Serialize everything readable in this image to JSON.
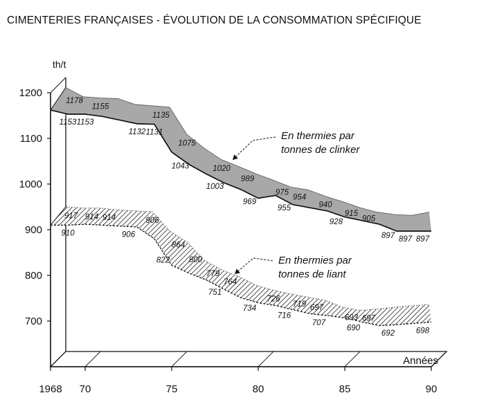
{
  "chart_data": {
    "type": "line",
    "title": "CIMENTERIES FRANÇAISES - ÉVOLUTION DE LA CONSOMMATION SPÉCIFIQUE",
    "ylabel": "th/t",
    "xlabel": "Années",
    "ylim": [
      600,
      1200
    ],
    "xlim": [
      1968,
      1990
    ],
    "y_ticks": [
      "700",
      "800",
      "900",
      "1000",
      "1100",
      "1200"
    ],
    "x_ticks": [
      "1968",
      "70",
      "75",
      "80",
      "85",
      "90"
    ],
    "x_tick_years": [
      1968,
      1970,
      1975,
      1980,
      1985,
      1990
    ],
    "grid": false,
    "style": "3d-ribbon",
    "series": [
      {
        "name": "En thermies par tonnes de clinker",
        "fill": "#a8a8a8",
        "front": [
          [
            1968,
            1162
          ],
          [
            1969,
            1153
          ],
          [
            1970,
            1153
          ],
          [
            1971,
            1148
          ],
          [
            1972,
            1140
          ],
          [
            1973,
            1132
          ],
          [
            1974,
            1131
          ],
          [
            1975,
            1070
          ],
          [
            1976,
            1043
          ],
          [
            1977,
            1022
          ],
          [
            1978,
            1003
          ],
          [
            1979,
            988
          ],
          [
            1980,
            969
          ],
          [
            1981,
            975
          ],
          [
            1982,
            955
          ],
          [
            1983,
            948
          ],
          [
            1984,
            941
          ],
          [
            1985,
            928
          ],
          [
            1986,
            920
          ],
          [
            1987,
            912
          ],
          [
            1988,
            897
          ],
          [
            1989,
            897
          ],
          [
            1990,
            897
          ]
        ],
        "back": [
          [
            1968,
            1178
          ],
          [
            1969,
            1158
          ],
          [
            1970,
            1155
          ],
          [
            1971,
            1154
          ],
          [
            1972,
            1141
          ],
          [
            1973,
            1138
          ],
          [
            1974,
            1135
          ],
          [
            1975,
            1075
          ],
          [
            1976,
            1045
          ],
          [
            1977,
            1020
          ],
          [
            1978,
            1005
          ],
          [
            1979,
            989
          ],
          [
            1980,
            975
          ],
          [
            1981,
            960
          ],
          [
            1982,
            954
          ],
          [
            1983,
            940
          ],
          [
            1984,
            928
          ],
          [
            1985,
            915
          ],
          [
            1986,
            905
          ],
          [
            1987,
            900
          ],
          [
            1988,
            898
          ],
          [
            1989,
            905
          ]
        ],
        "labels": {
          "front": [
            {
              "x": 1969,
              "t": "1153"
            },
            {
              "x": 1970,
              "t": "1153"
            },
            {
              "x": 1973,
              "t": "1132"
            },
            {
              "x": 1974,
              "t": "1131"
            },
            {
              "x": 1975.5,
              "t": "1043"
            },
            {
              "x": 1977.5,
              "t": "1003"
            },
            {
              "x": 1979.5,
              "t": "969"
            },
            {
              "x": 1981.5,
              "t": "955"
            },
            {
              "x": 1984.5,
              "t": "928"
            },
            {
              "x": 1987.5,
              "t": "897"
            },
            {
              "x": 1988.5,
              "t": "897"
            },
            {
              "x": 1989.5,
              "t": "897"
            }
          ],
          "back": [
            {
              "x": 1968.5,
              "t": "1178"
            },
            {
              "x": 1970,
              "t": "1155"
            },
            {
              "x": 1973.5,
              "t": "1135"
            },
            {
              "x": 1975,
              "t": "1075"
            },
            {
              "x": 1977,
              "t": "1020"
            },
            {
              "x": 1978.5,
              "t": "989"
            },
            {
              "x": 1980.5,
              "t": "975"
            },
            {
              "x": 1981.5,
              "t": "954"
            },
            {
              "x": 1983,
              "t": "940"
            },
            {
              "x": 1984.5,
              "t": "915"
            },
            {
              "x": 1985.5,
              "t": "905"
            }
          ]
        }
      },
      {
        "name": "En thermies par tonnes de liant",
        "fill": "hatch",
        "front": [
          [
            1968,
            910
          ],
          [
            1969,
            910
          ],
          [
            1970,
            912
          ],
          [
            1971,
            910
          ],
          [
            1972,
            908
          ],
          [
            1973,
            906
          ],
          [
            1974,
            880
          ],
          [
            1975,
            822
          ],
          [
            1976,
            805
          ],
          [
            1977,
            790
          ],
          [
            1978,
            770
          ],
          [
            1979,
            751
          ],
          [
            1980,
            740
          ],
          [
            1981,
            734
          ],
          [
            1982,
            725
          ],
          [
            1983,
            716
          ],
          [
            1984,
            712
          ],
          [
            1985,
            707
          ],
          [
            1986,
            698
          ],
          [
            1987,
            690
          ],
          [
            1988,
            692
          ],
          [
            1989,
            695
          ],
          [
            1990,
            698
          ]
        ],
        "back": [
          [
            1968,
            917
          ],
          [
            1969,
            914
          ],
          [
            1970,
            914
          ],
          [
            1971,
            910
          ],
          [
            1972,
            908
          ],
          [
            1973,
            906
          ],
          [
            1974,
            864
          ],
          [
            1975,
            840
          ],
          [
            1976,
            800
          ],
          [
            1977,
            779
          ],
          [
            1978,
            764
          ],
          [
            1979,
            745
          ],
          [
            1980,
            734
          ],
          [
            1981,
            726
          ],
          [
            1982,
            719
          ],
          [
            1983,
            712
          ],
          [
            1984,
            697
          ],
          [
            1985,
            690
          ],
          [
            1986,
            693
          ],
          [
            1987,
            697
          ],
          [
            1988,
            700
          ],
          [
            1989,
            703
          ]
        ],
        "labels": {
          "front": [
            {
              "x": 1969,
              "t": "910"
            },
            {
              "x": 1972.5,
              "t": "906"
            },
            {
              "x": 1974.5,
              "t": "822"
            },
            {
              "x": 1977.5,
              "t": "751"
            },
            {
              "x": 1979.5,
              "t": "734"
            },
            {
              "x": 1981.5,
              "t": "716"
            },
            {
              "x": 1983.5,
              "t": "707"
            },
            {
              "x": 1985.5,
              "t": "690"
            },
            {
              "x": 1987.5,
              "t": "692"
            },
            {
              "x": 1989.5,
              "t": "698"
            }
          ],
          "back": [
            {
              "x": 1968.3,
              "t": "917"
            },
            {
              "x": 1969.5,
              "t": "914"
            },
            {
              "x": 1970.5,
              "t": "914"
            },
            {
              "x": 1973,
              "t": "906"
            },
            {
              "x": 1974.5,
              "t": "864"
            },
            {
              "x": 1975.5,
              "t": "800"
            },
            {
              "x": 1976.5,
              "t": "779"
            },
            {
              "x": 1977.5,
              "t": "764"
            },
            {
              "x": 1980,
              "t": "726"
            },
            {
              "x": 1981.5,
              "t": "719"
            },
            {
              "x": 1982.5,
              "t": "697"
            },
            {
              "x": 1984.5,
              "t": "693"
            },
            {
              "x": 1985.5,
              "t": "697"
            }
          ]
        }
      }
    ],
    "annotations": [
      {
        "series": 0,
        "lines": [
          "En thermies par",
          "tonnes de clinker"
        ]
      },
      {
        "series": 1,
        "lines": [
          "En thermies par",
          "tonnes de liant"
        ]
      }
    ]
  }
}
